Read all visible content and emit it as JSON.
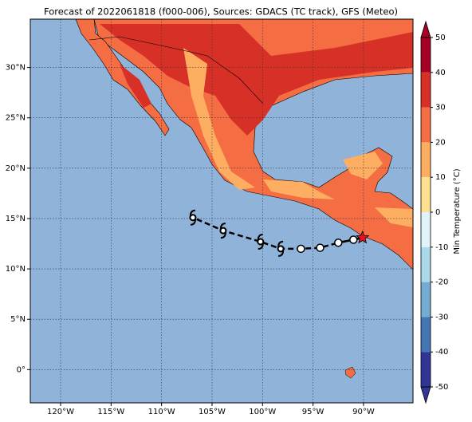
{
  "chart_data": {
    "type": "map",
    "title": "Forecast of 2022061818 (f000-006), Sources: GDACS (TC track), GFS (Meteo)",
    "xlim": [
      -123,
      -85.1
    ],
    "ylim": [
      -3.3,
      34.8
    ],
    "xticks": [
      {
        "value": -120,
        "label": "120°W"
      },
      {
        "value": -115,
        "label": "115°W"
      },
      {
        "value": -110,
        "label": "110°W"
      },
      {
        "value": -105,
        "label": "105°W"
      },
      {
        "value": -100,
        "label": "100°W"
      },
      {
        "value": -95,
        "label": "95°W"
      },
      {
        "value": -90,
        "label": "90°W"
      }
    ],
    "yticks": [
      {
        "value": 0,
        "label": "0°"
      },
      {
        "value": 5,
        "label": "5°N"
      },
      {
        "value": 10,
        "label": "10°N"
      },
      {
        "value": 15,
        "label": "15°N"
      },
      {
        "value": 20,
        "label": "20°N"
      },
      {
        "value": 25,
        "label": "25°N"
      },
      {
        "value": 30,
        "label": "30°N"
      }
    ],
    "grid": true,
    "track": {
      "lon": [
        -90.1,
        -91.0,
        -92.5,
        -94.3,
        -96.2,
        -98.2,
        -100.2,
        -103.9,
        -106.9
      ],
      "lat": [
        13.1,
        12.9,
        12.6,
        12.1,
        12.0,
        12.0,
        12.7,
        13.8,
        15.1
      ]
    },
    "colorbar": {
      "label": "Min Temperature (°C)",
      "ticks": [
        50,
        40,
        30,
        20,
        10,
        0,
        -10,
        -20,
        -30,
        -40,
        -50
      ],
      "colors": [
        "#a50026",
        "#d73027",
        "#f46d43",
        "#fdae61",
        "#fee090",
        "#e0f3f8",
        "#abd9e9",
        "#74add1",
        "#4575b4",
        "#313695"
      ]
    }
  }
}
